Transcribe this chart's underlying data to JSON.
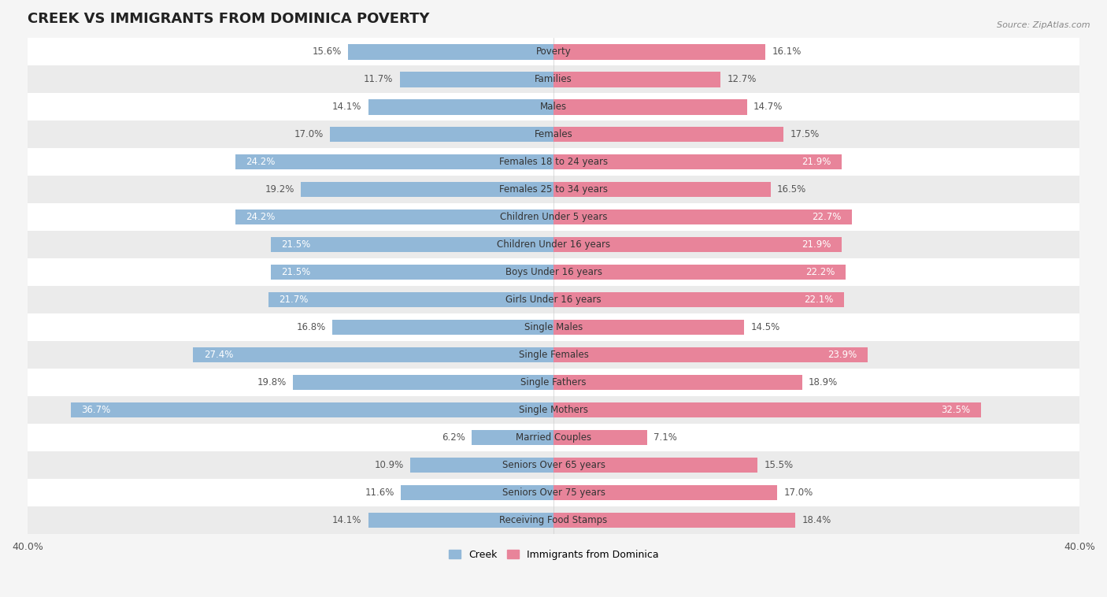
{
  "title": "CREEK VS IMMIGRANTS FROM DOMINICA POVERTY",
  "source": "Source: ZipAtlas.com",
  "categories": [
    "Poverty",
    "Families",
    "Males",
    "Females",
    "Females 18 to 24 years",
    "Females 25 to 34 years",
    "Children Under 5 years",
    "Children Under 16 years",
    "Boys Under 16 years",
    "Girls Under 16 years",
    "Single Males",
    "Single Females",
    "Single Fathers",
    "Single Mothers",
    "Married Couples",
    "Seniors Over 65 years",
    "Seniors Over 75 years",
    "Receiving Food Stamps"
  ],
  "creek_values": [
    15.6,
    11.7,
    14.1,
    17.0,
    24.2,
    19.2,
    24.2,
    21.5,
    21.5,
    21.7,
    16.8,
    27.4,
    19.8,
    36.7,
    6.2,
    10.9,
    11.6,
    14.1
  ],
  "dominica_values": [
    16.1,
    12.7,
    14.7,
    17.5,
    21.9,
    16.5,
    22.7,
    21.9,
    22.2,
    22.1,
    14.5,
    23.9,
    18.9,
    32.5,
    7.1,
    15.5,
    17.0,
    18.4
  ],
  "creek_color": "#92b8d8",
  "dominica_color": "#e8849a",
  "bar_height": 0.55,
  "max_val": 40.0,
  "background_color": "#f5f5f5",
  "row_colors": [
    "#ffffff",
    "#ebebeb"
  ],
  "title_fontsize": 13,
  "label_fontsize": 8.5,
  "value_fontsize": 8.5,
  "tick_fontsize": 9,
  "legend_label_creek": "Creek",
  "legend_label_dominica": "Immigrants from Dominica",
  "inner_label_threshold": 20.0
}
